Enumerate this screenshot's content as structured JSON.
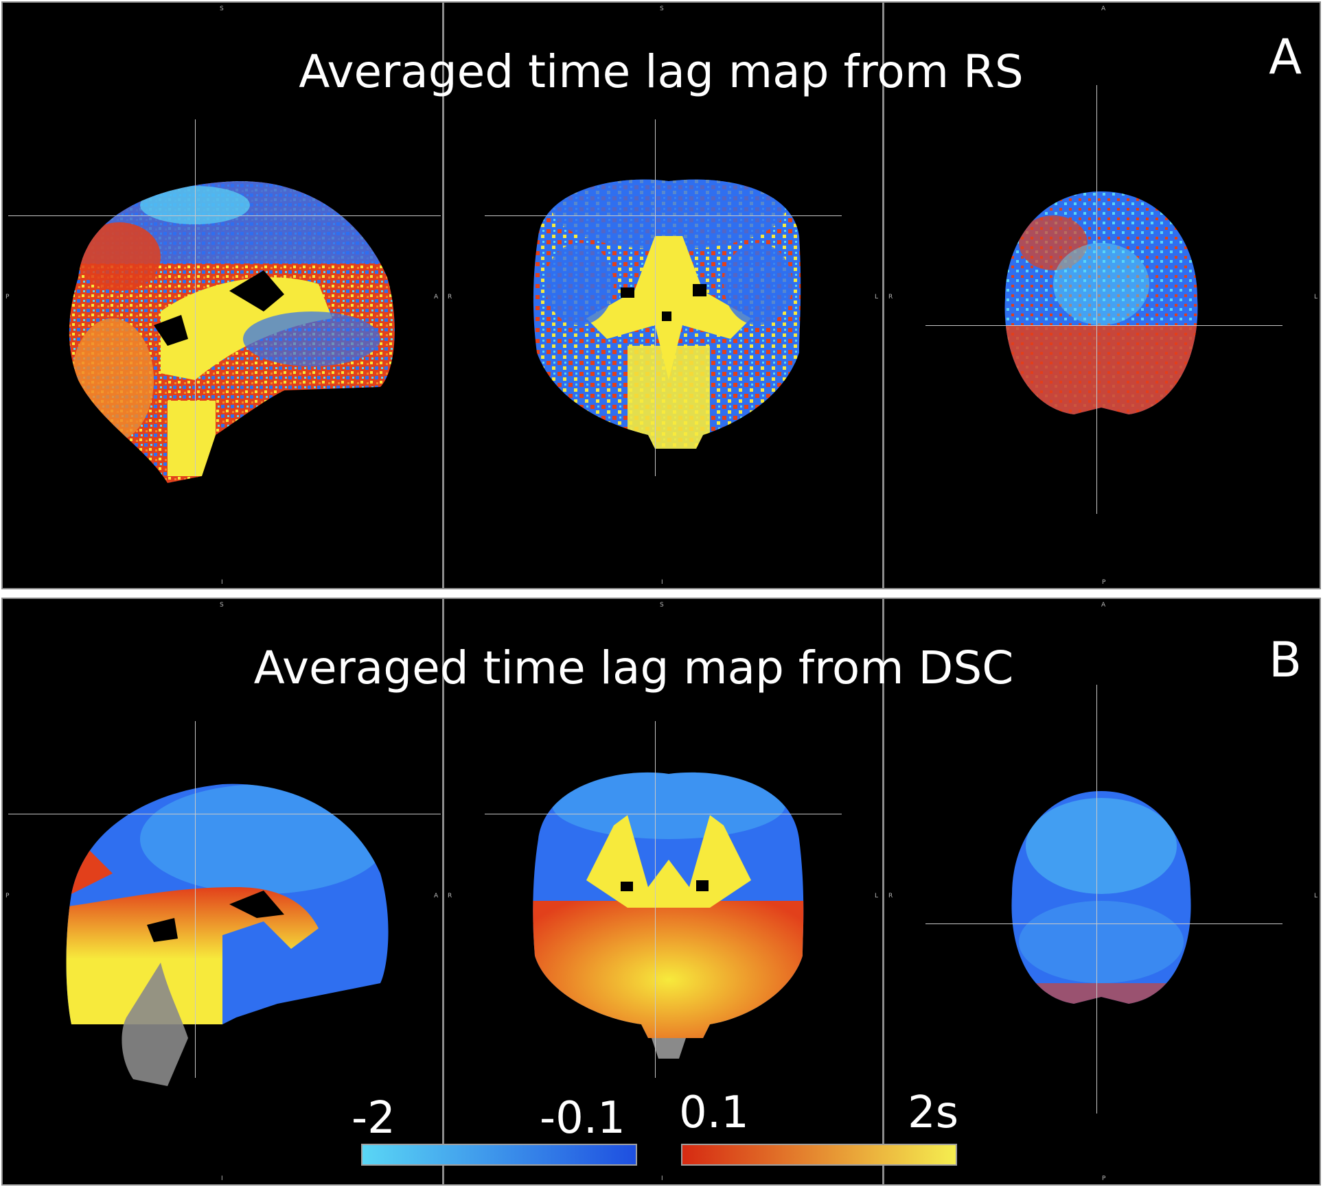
{
  "panels": [
    {
      "letter": "A",
      "title": "Averaged time lag map from RS",
      "views": [
        {
          "top": "S",
          "left": "P",
          "right": "A",
          "bottom": "I"
        },
        {
          "top": "S",
          "left": "R",
          "right": "L",
          "bottom": "I"
        },
        {
          "top": "A",
          "left": "R",
          "right": "L",
          "bottom": "P"
        }
      ]
    },
    {
      "letter": "B",
      "title": "Averaged time lag map from DSC",
      "views": [
        {
          "top": "S",
          "left": "P",
          "right": "A",
          "bottom": "I"
        },
        {
          "top": "S",
          "left": "R",
          "right": "L",
          "bottom": "I"
        },
        {
          "top": "A",
          "left": "R",
          "right": "L",
          "bottom": "P"
        }
      ]
    }
  ],
  "colorbar": {
    "labels": {
      "neg_min": "-2",
      "neg_max": "-0.1",
      "pos_min": "0.1",
      "pos_max": "2s"
    },
    "negative_colors": [
      "#5ad6f5",
      "#1e4fe0"
    ],
    "positive_colors": [
      "#d62a12",
      "#f5ee50"
    ]
  },
  "colors": {
    "background": "#000000",
    "frame": "#8c8c8c",
    "lag_blue": "#2f6ff0",
    "lag_cyan": "#5ad6f5",
    "lag_red": "#e2401b",
    "lag_orange": "#f08a2a",
    "lag_yellow": "#f7ea3c",
    "anatomy_gray": "#8a8a8a"
  }
}
